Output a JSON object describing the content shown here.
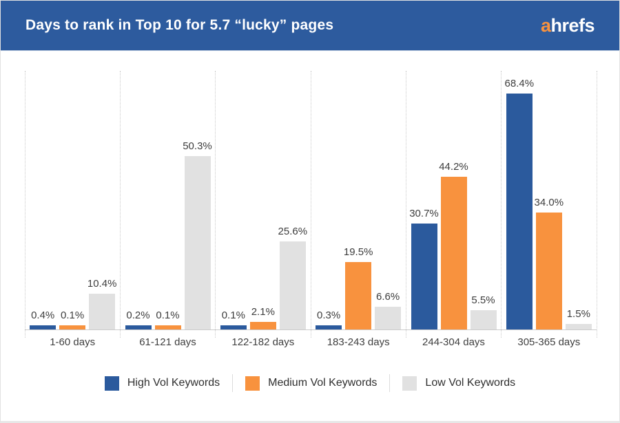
{
  "header": {
    "title": "Days to rank in Top 10 for 5.7 “lucky” pages",
    "logo": {
      "accent": "a",
      "rest": "hrefs"
    }
  },
  "colors": {
    "header_bg": "#2d5b9e",
    "logo_accent": "#f8923e",
    "bar_label_text": "#3d3d3d",
    "gridline": "#c9c9c9",
    "baseline": "#cccccc"
  },
  "chart_data": {
    "type": "bar",
    "title": "Days to rank in Top 10 for 5.7 “lucky” pages",
    "xlabel": "",
    "ylabel": "",
    "value_suffix": "%",
    "ylim": [
      0,
      75
    ],
    "grid": "vertical-dotted",
    "legend_position": "bottom",
    "categories": [
      "1-60 days",
      "61-121 days",
      "122-182 days",
      "183-243 days",
      "244-304 days",
      "305-365 days"
    ],
    "series": [
      {
        "name": "High Vol Keywords",
        "color": "#2b5a9d",
        "values": [
          0.4,
          0.2,
          0.1,
          0.3,
          30.7,
          68.4
        ]
      },
      {
        "name": "Medium Vol Keywords",
        "color": "#f8923e",
        "values": [
          0.1,
          0.1,
          2.1,
          19.5,
          44.2,
          34.0
        ]
      },
      {
        "name": "Low Vol Keywords",
        "color": "#e1e1e1",
        "values": [
          10.4,
          50.3,
          25.6,
          6.6,
          5.5,
          1.5
        ]
      }
    ]
  }
}
